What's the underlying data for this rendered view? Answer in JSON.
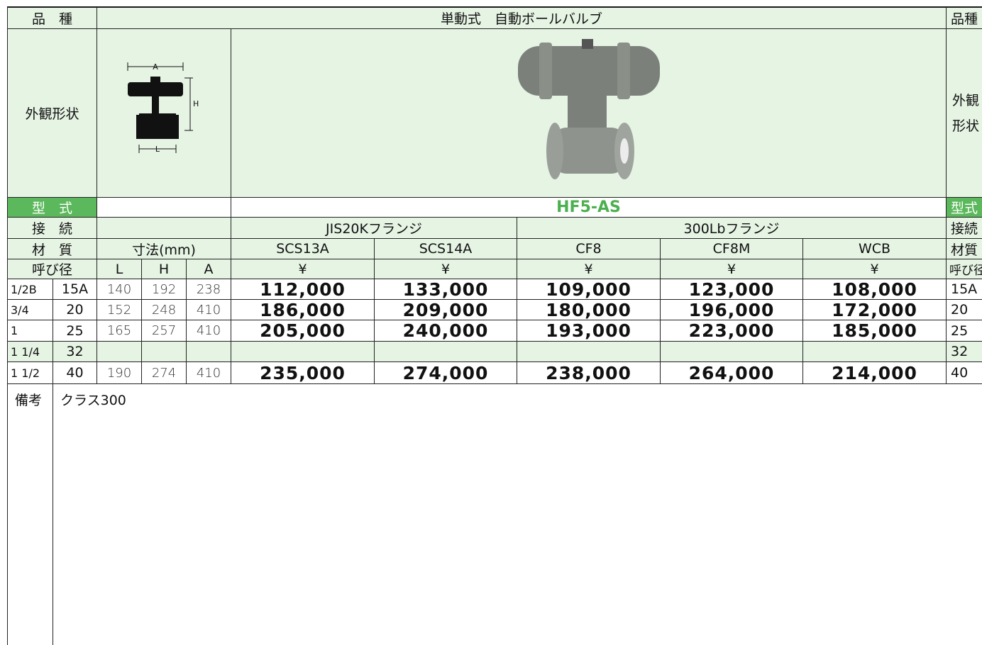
{
  "header": {
    "kind_label": "品　種",
    "kind": "単動式　自動ボールバルブ",
    "kind_label_right": "品種"
  },
  "appearance": {
    "label": "外観形状",
    "label_right": [
      "外観",
      "形状"
    ],
    "dim_labels": [
      "A",
      "H",
      "L"
    ]
  },
  "model": {
    "label": "型　式",
    "value": "HF5-AS",
    "label_right": "型式"
  },
  "connection": {
    "label": "接　続",
    "groups": [
      "JIS20Kフランジ",
      "300Lbフランジ"
    ],
    "label_right": "接続"
  },
  "material": {
    "label": "材　質",
    "dims_label": "寸法(mm)",
    "materials": [
      "SCS13A",
      "SCS14A",
      "CF8",
      "CF8M",
      "WCB"
    ],
    "label_right": "材質"
  },
  "size_header": {
    "label": "呼び径",
    "dims": [
      "L",
      "H",
      "A"
    ],
    "currency": [
      "¥",
      "¥",
      "¥",
      "¥",
      "¥"
    ],
    "label_right": "呼び径"
  },
  "rows": [
    {
      "inch": "1/2B",
      "size": "15A",
      "dims": [
        140,
        192,
        238
      ],
      "prices": [
        "112,000",
        "133,000",
        "109,000",
        "123,000",
        "108,000"
      ],
      "size_right": "15A"
    },
    {
      "inch": "3/4",
      "size": "20",
      "dims": [
        152,
        248,
        410
      ],
      "prices": [
        "186,000",
        "209,000",
        "180,000",
        "196,000",
        "172,000"
      ],
      "size_right": "20"
    },
    {
      "inch": "1",
      "size": "25",
      "dims": [
        165,
        257,
        410
      ],
      "prices": [
        "205,000",
        "240,000",
        "193,000",
        "223,000",
        "185,000"
      ],
      "size_right": "25"
    },
    {
      "inch": "1 1/4",
      "size": "32",
      "size_right": "32"
    },
    {
      "inch": "1 1/2",
      "size": "40",
      "dims": [
        190,
        274,
        410
      ],
      "prices": [
        "235,000",
        "274,000",
        "238,000",
        "264,000",
        "214,000"
      ],
      "size_right": "40"
    }
  ],
  "remarks": {
    "label": "備考",
    "text": "クラス300"
  }
}
